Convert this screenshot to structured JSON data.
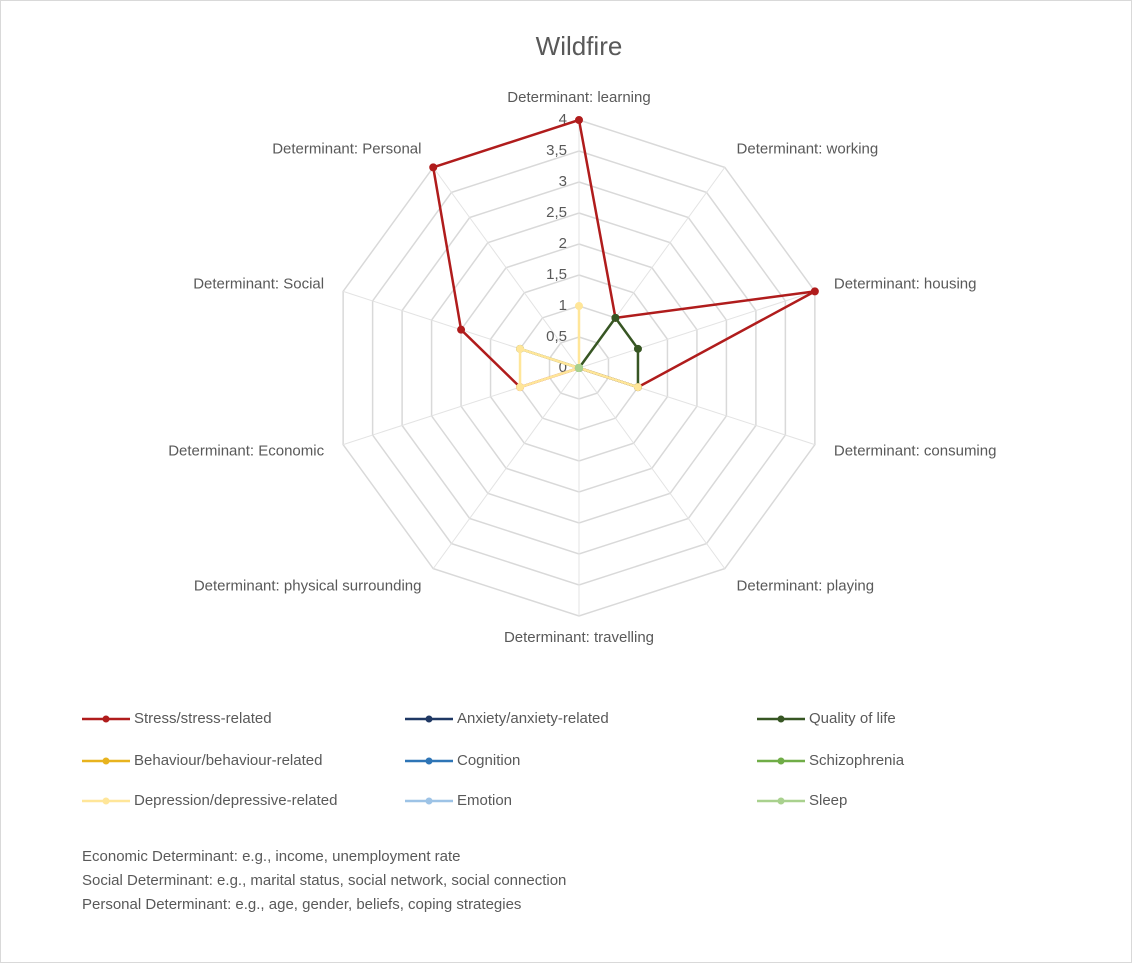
{
  "chart_data": {
    "type": "radar",
    "title": "Wildfire",
    "categories": [
      "Determinant: learning",
      "Determinant: working",
      "Determinant: housing",
      "Determinant: consuming",
      "Determinant: playing",
      "Determinant: travelling",
      "Determinant: physical surrounding",
      "Determinant: Economic",
      "Determinant: Social",
      "Determinant: Personal"
    ],
    "series": [
      {
        "name": "Stress/stress-related",
        "color": "#b01c1c",
        "values": [
          4,
          1,
          4,
          1,
          0,
          0,
          0,
          1,
          2,
          4
        ]
      },
      {
        "name": "Anxiety/anxiety-related",
        "color": "#1f3864",
        "values": [
          0,
          0,
          0,
          0,
          0,
          0,
          0,
          0,
          0,
          0
        ]
      },
      {
        "name": "Quality of life",
        "color": "#375623",
        "values": [
          0,
          1,
          1,
          1,
          0,
          0,
          0,
          0,
          1,
          0
        ]
      },
      {
        "name": "Behaviour/behaviour-related",
        "color": "#e8b31e",
        "values": [
          0,
          0,
          0,
          0,
          0,
          0,
          0,
          0,
          0,
          0
        ]
      },
      {
        "name": "Cognition",
        "color": "#2e75b6",
        "values": [
          0,
          0,
          0,
          0,
          0,
          0,
          0,
          0,
          0,
          0
        ]
      },
      {
        "name": "Schizophrenia",
        "color": "#70ad47",
        "values": [
          0,
          0,
          0,
          0,
          0,
          0,
          0,
          0,
          0,
          0
        ]
      },
      {
        "name": "Depression/depressive-related",
        "color": "#ffe699",
        "values": [
          1,
          0,
          0,
          1,
          0,
          0,
          0,
          1,
          1,
          0
        ]
      },
      {
        "name": "Emotion",
        "color": "#9dc3e6",
        "values": [
          0,
          0,
          0,
          0,
          0,
          0,
          0,
          0,
          0,
          0
        ]
      },
      {
        "name": "Sleep",
        "color": "#a9d18e",
        "values": [
          0,
          0,
          0,
          0,
          0,
          0,
          0,
          0,
          0,
          0
        ]
      }
    ],
    "ylim": [
      0,
      4
    ],
    "yticks": [
      0,
      {
        "value": 0.5,
        "label": "0,5"
      },
      1,
      {
        "value": 1.5,
        "label": "1,5"
      },
      2,
      {
        "value": 2.5,
        "label": "2,5"
      },
      3,
      {
        "value": 3.5,
        "label": "3,5"
      },
      4
    ],
    "grid": true,
    "legend": "bottom",
    "notes": [
      "Economic Determinant: e.g., income, unemployment rate",
      "Social Determinant: e.g., marital status, social network, social connection",
      "Personal Determinant: e.g., age, gender, beliefs, coping strategies"
    ]
  }
}
